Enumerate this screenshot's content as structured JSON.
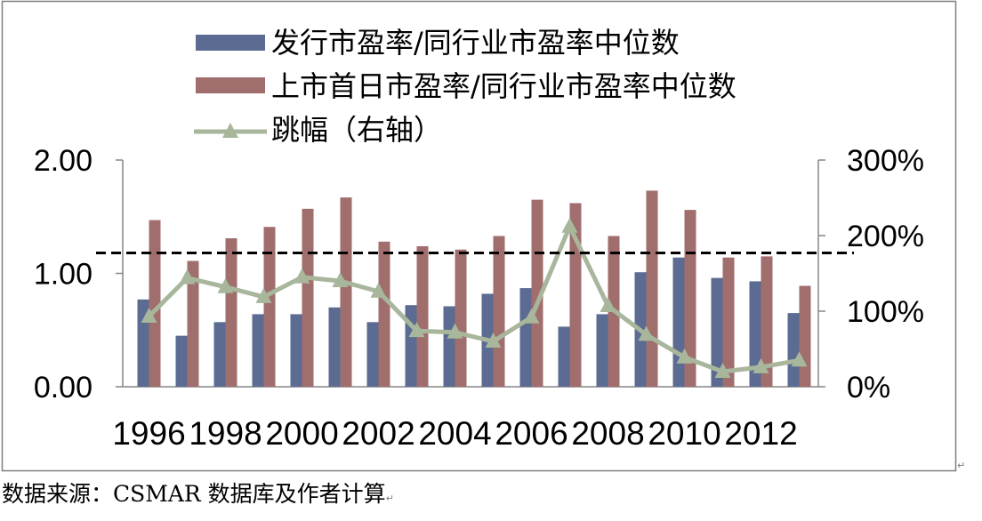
{
  "chart_data": {
    "type": "bar",
    "x": [
      1996,
      1997,
      1998,
      1999,
      2000,
      2001,
      2002,
      2003,
      2004,
      2005,
      2006,
      2007,
      2008,
      2009,
      2010,
      2011,
      2012,
      2013
    ],
    "x_tick_labels": [
      "1996",
      "1998",
      "2000",
      "2002",
      "2004",
      "2006",
      "2008",
      "2010",
      "2012"
    ],
    "series": [
      {
        "name": "发行市盈率/同行业市盈率中位数",
        "type": "bar",
        "axis": "left",
        "color": "#5b6b92",
        "values": [
          0.77,
          0.45,
          0.57,
          0.64,
          0.64,
          0.7,
          0.57,
          0.72,
          0.71,
          0.82,
          0.87,
          0.53,
          0.64,
          1.01,
          1.14,
          0.96,
          0.93,
          0.65
        ]
      },
      {
        "name": "上市首日市盈率/同行业市盈率中位数",
        "type": "bar",
        "axis": "left",
        "color": "#a06e6d",
        "values": [
          1.47,
          1.11,
          1.31,
          1.41,
          1.57,
          1.67,
          1.28,
          1.24,
          1.21,
          1.33,
          1.65,
          1.62,
          1.33,
          1.73,
          1.56,
          1.14,
          1.15,
          0.89
        ]
      },
      {
        "name": "跳幅（右轴）",
        "type": "line",
        "axis": "right",
        "marker": "triangle",
        "color": "#a8b69c",
        "values": [
          93,
          144,
          132,
          119,
          145,
          140,
          126,
          74,
          72,
          60,
          92,
          212,
          107,
          69,
          39,
          20,
          26,
          35
        ]
      }
    ],
    "y_left": {
      "lim": [
        0,
        2
      ],
      "tick_labels": [
        "2.00",
        "1.00",
        "0.00"
      ]
    },
    "y_right": {
      "lim": [
        0,
        300
      ],
      "tick_labels": [
        "300%",
        "200%",
        "100%",
        "0%"
      ]
    },
    "reference_line": {
      "axis": "left",
      "value": 1.18,
      "style": "dashed",
      "color": "#000000"
    },
    "legend_position": "top",
    "grid": false
  },
  "source_note": "数据来源：CSMAR 数据库及作者计算",
  "paragraph_mark": "↵"
}
